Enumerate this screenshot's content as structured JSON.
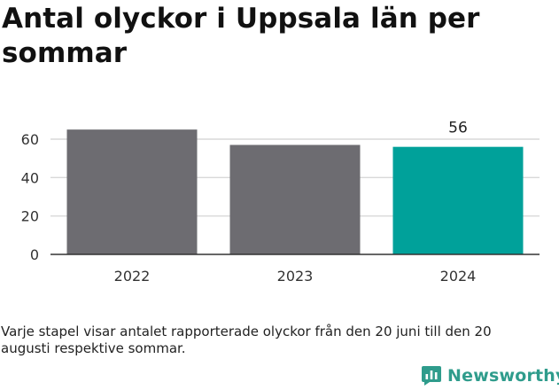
{
  "title": "Antal olyckor i Uppsala län per sommar",
  "footnote": "Varje stapel visar antalet rapporterade olyckor från den 20 juni till den 20 augusti respektive sommar.",
  "brand": {
    "name": "Newsworthy",
    "color": "#2f9c8c"
  },
  "colors": {
    "bar_default": "#6d6c71",
    "bar_highlight": "#00a19a",
    "grid": "#d9d9d9",
    "axis": "#333333"
  },
  "chart_data": {
    "type": "bar",
    "categories": [
      "2022",
      "2023",
      "2024"
    ],
    "values": [
      65,
      57,
      56
    ],
    "highlight_index": 2,
    "data_labels": [
      "",
      "",
      "56"
    ],
    "yticks": [
      "0",
      "20",
      "40",
      "60"
    ],
    "ylim": [
      0,
      60
    ],
    "grid": true,
    "xlabel": "",
    "ylabel": ""
  }
}
